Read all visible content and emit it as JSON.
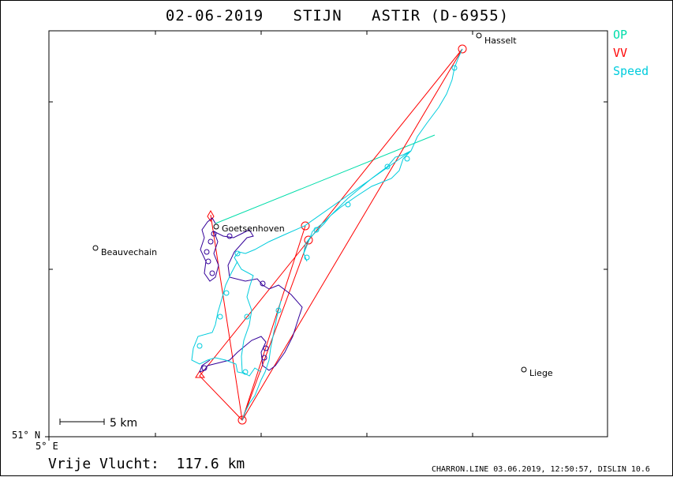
{
  "title": "02-06-2019   STIJN   ASTIR (D-6955)",
  "legend": [
    {
      "label": "OP",
      "color": "#00ddaa"
    },
    {
      "label": "VV",
      "color": "#ff0000"
    },
    {
      "label": "Speed",
      "color": "#00ccdd"
    }
  ],
  "axis": {
    "lat_label": "51° N",
    "lon_label": "5° E"
  },
  "scale_bar": {
    "label": "5  km"
  },
  "places": [
    {
      "name": "Hasselt"
    },
    {
      "name": "Goetsenhoven"
    },
    {
      "name": "Beauvechain"
    },
    {
      "name": "Liege"
    }
  ],
  "footer": {
    "distance": "Vrije Vlucht:  117.6 km",
    "credit": "CHARRON.LINE 03.06.2019, 12:50:57, DISLIN 10.6"
  },
  "colors": {
    "track_low": "#330099",
    "track_high": "#00ccdd",
    "op_line": "#00ddaa",
    "vv_line": "#ff0000"
  }
}
